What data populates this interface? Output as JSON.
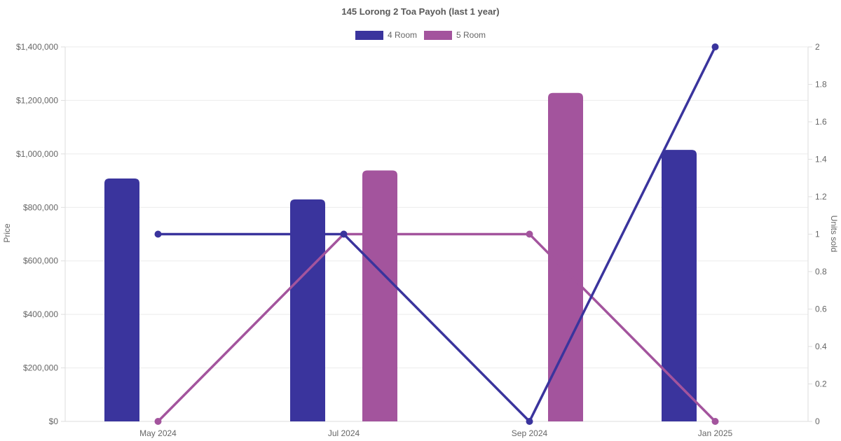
{
  "chart_data": {
    "type": "bar",
    "subtype": "bar-line-combo",
    "title": "145 Lorong 2 Toa Payoh (last 1 year)",
    "categories": [
      "May 2024",
      "Jul 2024",
      "Sep 2024",
      "Jan 2025"
    ],
    "bar_series": [
      {
        "name": "4 Room",
        "color": "#3a349d",
        "axis": "price",
        "values": [
          908000,
          830000,
          null,
          1015000
        ]
      },
      {
        "name": "5 Room",
        "color": "#a3549d",
        "axis": "price",
        "values": [
          null,
          938000,
          1228000,
          null
        ]
      }
    ],
    "line_series": [
      {
        "name": "4 Room",
        "color": "#3a349d",
        "axis": "units",
        "values": [
          1,
          1,
          0,
          2
        ]
      },
      {
        "name": "5 Room",
        "color": "#a3549d",
        "axis": "units",
        "values": [
          0,
          1,
          1,
          0
        ]
      }
    ],
    "y_left": {
      "label": "Price",
      "min": 0,
      "max": 1400000,
      "tick_step": 200000,
      "tick_labels": [
        "$0",
        "$200,000",
        "$400,000",
        "$600,000",
        "$800,000",
        "$1,000,000",
        "$1,200,000",
        "$1,400,000"
      ]
    },
    "y_right": {
      "label": "Units sold",
      "min": 0,
      "max": 2,
      "tick_step": 0.2,
      "tick_labels": [
        "0",
        "0.2",
        "0.4",
        "0.6",
        "0.8",
        "1",
        "1.2",
        "1.4",
        "1.6",
        "1.8",
        "2"
      ]
    },
    "legend": [
      {
        "label": "4 Room",
        "color": "#3a349d"
      },
      {
        "label": "5 Room",
        "color": "#a3549d"
      }
    ],
    "grid": true,
    "legend_position": "top",
    "colors": {
      "grid": "#ebebeb",
      "axis_line": "#dedede",
      "axis_text": "#666666",
      "title_text": "#595959",
      "background": "#ffffff"
    }
  }
}
